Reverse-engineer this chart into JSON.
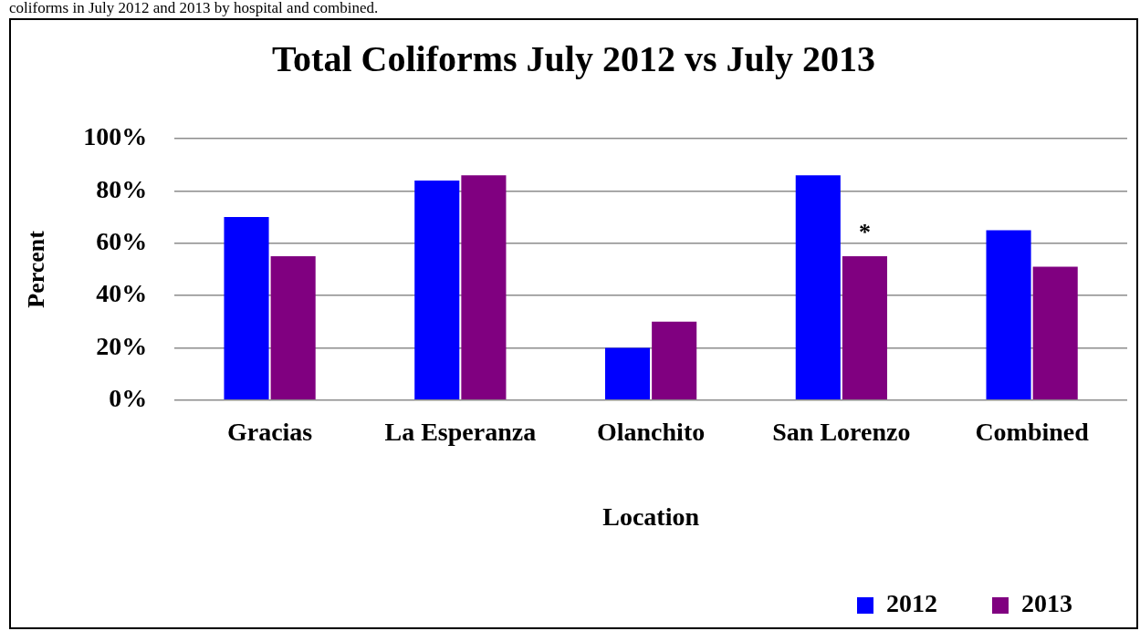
{
  "chart_data": {
    "type": "bar",
    "title": "Total Coliforms July 2012 vs July 2013",
    "xlabel": "Location",
    "ylabel": "Percent",
    "categories": [
      "Gracias",
      "La Esperanza",
      "Olanchito",
      "San Lorenzo",
      "Combined"
    ],
    "series": [
      {
        "name": "2012",
        "color": "#0000ff",
        "values": [
          70,
          84,
          20,
          86,
          65
        ]
      },
      {
        "name": "2013",
        "color": "#800080",
        "values": [
          55,
          86,
          30,
          55,
          51
        ]
      }
    ],
    "ylim": [
      0,
      100
    ],
    "yticks": [
      {
        "value": 0,
        "label": "0%"
      },
      {
        "value": 20,
        "label": "20%"
      },
      {
        "value": 40,
        "label": "40%"
      },
      {
        "value": 60,
        "label": "60%"
      },
      {
        "value": 80,
        "label": "80%"
      },
      {
        "value": 100,
        "label": "100%"
      }
    ],
    "grid": "y",
    "legend": "bottom right",
    "annotations": [
      "coliforms in July 2012 and 2013 by hospital and combined.",
      {
        "text": "*",
        "x": "San Lorenzo",
        "y": 55
      }
    ]
  }
}
